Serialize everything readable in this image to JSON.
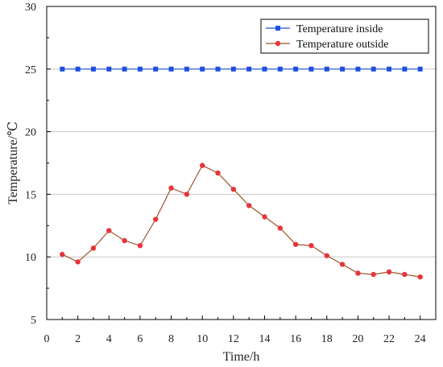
{
  "chart_data": {
    "type": "line",
    "title": "",
    "xlabel": "Time/h",
    "ylabel": "Temperature/℃",
    "xlim": [
      0,
      25
    ],
    "ylim": [
      5,
      30
    ],
    "x_ticks": [
      0,
      2,
      4,
      6,
      8,
      10,
      12,
      14,
      16,
      18,
      20,
      22,
      24
    ],
    "y_ticks": [
      5,
      10,
      15,
      20,
      25,
      30
    ],
    "grid": "horizontal",
    "legend_position": "top-right",
    "x": [
      1,
      2,
      3,
      4,
      5,
      6,
      7,
      8,
      9,
      10,
      11,
      12,
      13,
      14,
      15,
      16,
      17,
      18,
      19,
      20,
      21,
      22,
      23,
      24
    ],
    "series": [
      {
        "name": "Temperature inside",
        "color": "#1f4fe0",
        "marker": "square",
        "values": [
          25,
          25,
          25,
          25,
          25,
          25,
          25,
          25,
          25,
          25,
          25,
          25,
          25,
          25,
          25,
          25,
          25,
          25,
          25,
          25,
          25,
          25,
          25,
          25
        ]
      },
      {
        "name": "Temperature outside",
        "color": "#a0522d",
        "marker_color": "#e8343a",
        "marker": "circle",
        "values": [
          10.2,
          9.6,
          10.7,
          12.1,
          11.3,
          10.9,
          13.0,
          15.5,
          15.0,
          17.3,
          16.7,
          15.4,
          14.1,
          13.2,
          12.3,
          11.0,
          10.9,
          10.1,
          9.4,
          8.7,
          8.6,
          8.8,
          8.6,
          8.4
        ]
      }
    ]
  }
}
